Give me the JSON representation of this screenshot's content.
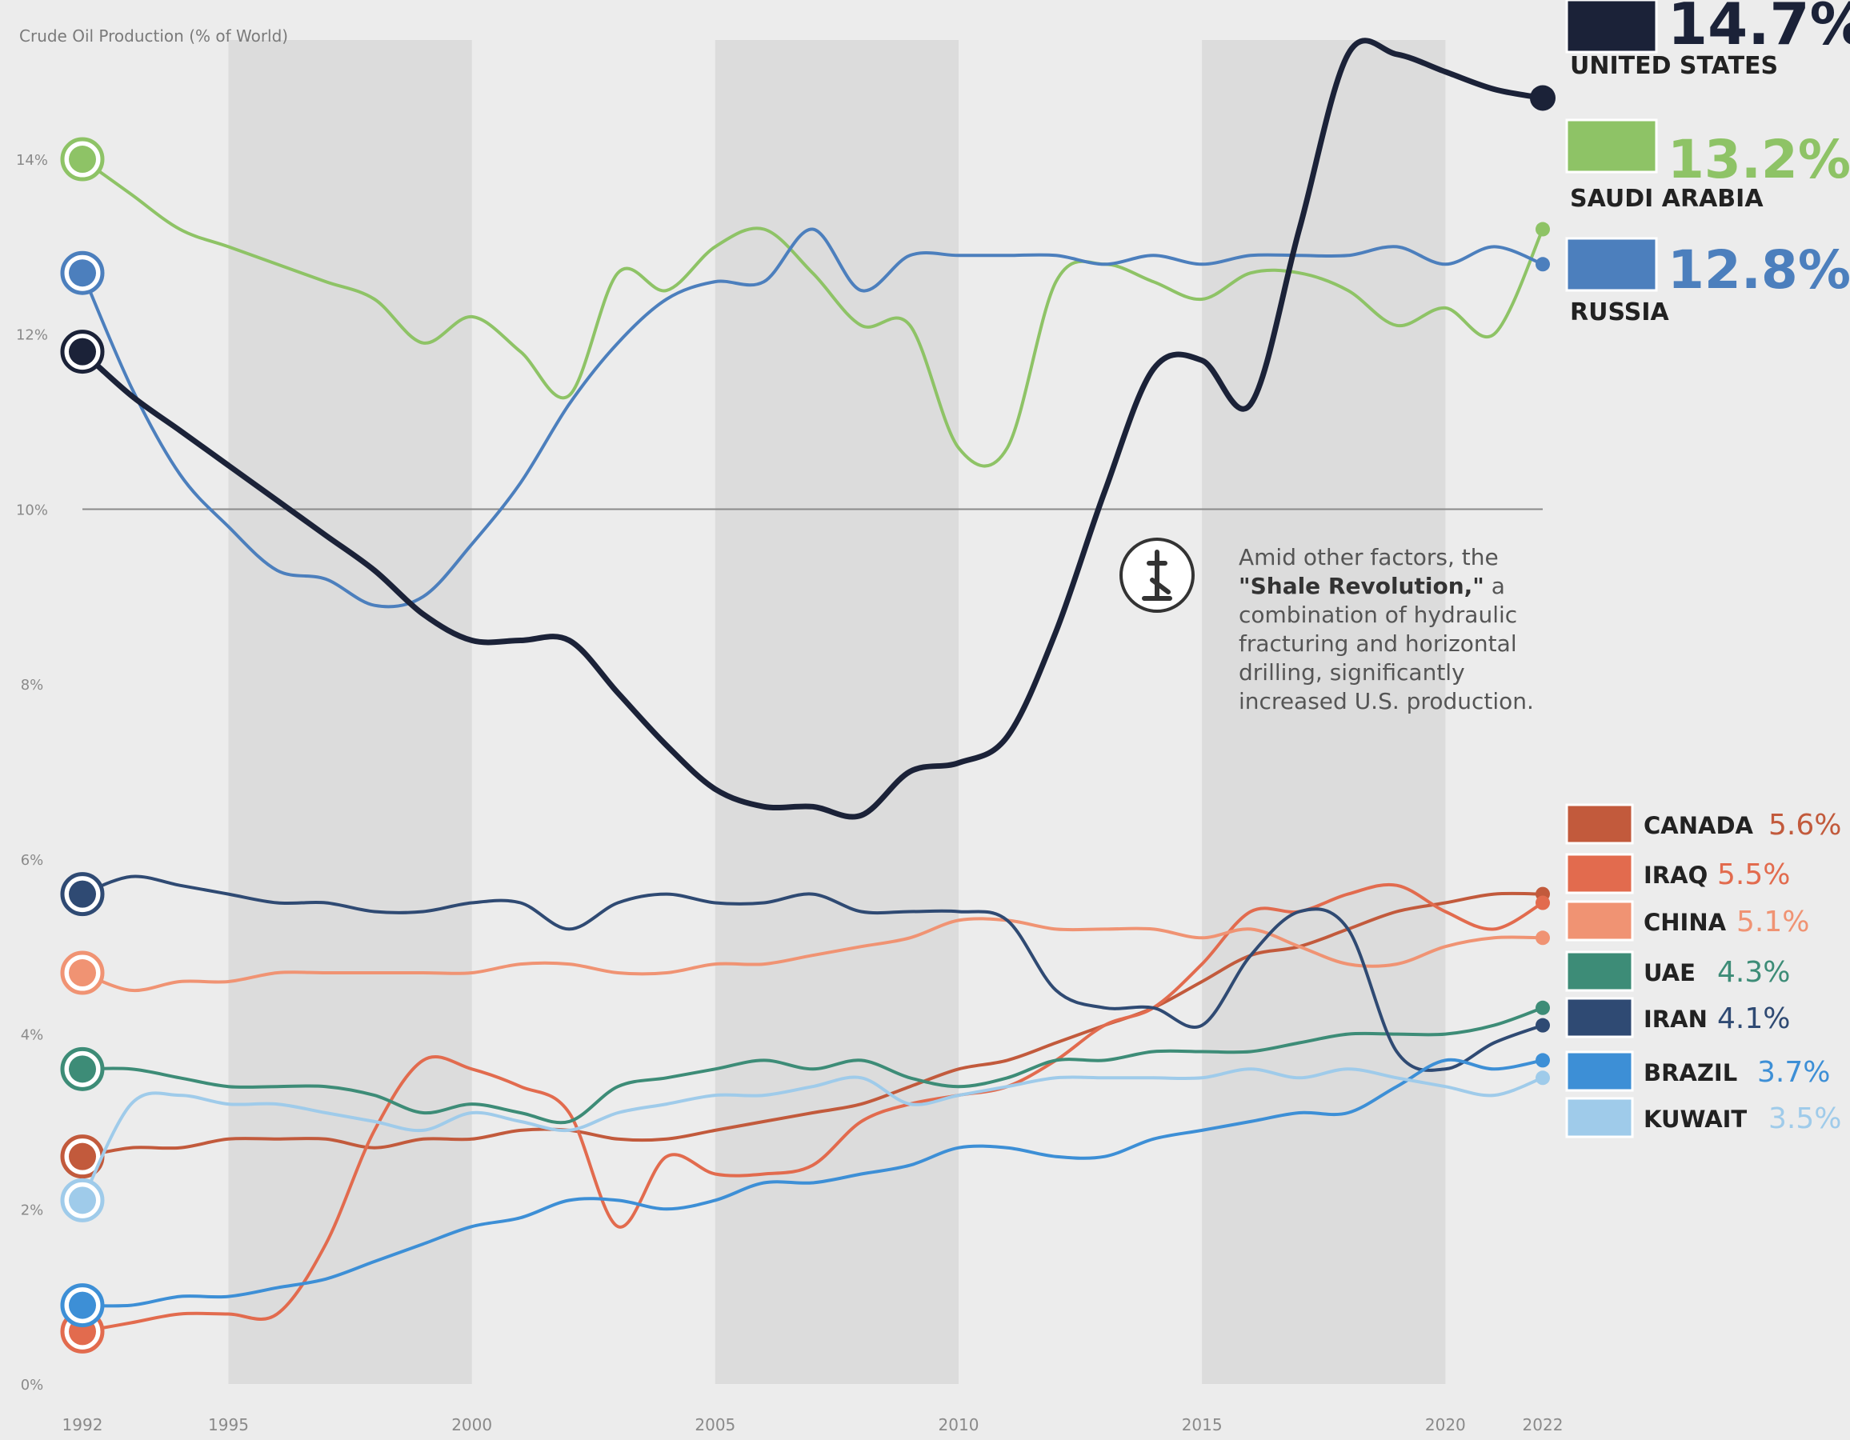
{
  "chart_data": {
    "type": "line",
    "title": "Crude Oil Production (% of World)",
    "xlabel": "",
    "ylabel": "",
    "xlim": [
      1992,
      2022
    ],
    "ylim": [
      0,
      15.5
    ],
    "x_ticks": [
      1992,
      1995,
      2000,
      2005,
      2010,
      2015,
      2020,
      2022
    ],
    "y_ticks": [
      {
        "value": 0,
        "label": "0%"
      },
      {
        "value": 2,
        "label": "2%"
      },
      {
        "value": 4,
        "label": "4%"
      },
      {
        "value": 6,
        "label": "6%"
      },
      {
        "value": 8,
        "label": "8%"
      },
      {
        "value": 10,
        "label": "10%"
      },
      {
        "value": 12,
        "label": "12%"
      },
      {
        "value": 14,
        "label": "14%"
      }
    ],
    "grid": false,
    "highlight_line_value": 10,
    "shaded_bands": [
      [
        1995,
        2000
      ],
      [
        2005,
        2010
      ],
      [
        2015,
        2020
      ]
    ],
    "annotation": {
      "icon": "oil-derrick-icon",
      "line1": "Amid other factors, the",
      "line2_bold": "\"Shale Revolution,\"",
      "line2_rest": " a",
      "line3": "combination of hydraulic",
      "line4": "fracturing and horizontal",
      "line5": "drilling, significantly",
      "line6": "increased U.S. production."
    },
    "series": [
      {
        "name": "UNITED STATES",
        "value_label": "14.7%",
        "color": "#1b2238",
        "emphasis": true,
        "x": [
          1992,
          1993,
          1994,
          1995,
          1996,
          1997,
          1998,
          1999,
          2000,
          2001,
          2002,
          2003,
          2004,
          2005,
          2006,
          2007,
          2008,
          2009,
          2010,
          2011,
          2012,
          2013,
          2014,
          2015,
          2016,
          2017,
          2018,
          2019,
          2020,
          2021,
          2022
        ],
        "values": [
          11.8,
          11.3,
          10.9,
          10.5,
          10.1,
          9.7,
          9.3,
          8.8,
          8.5,
          8.5,
          8.5,
          7.9,
          7.3,
          6.8,
          6.6,
          6.6,
          6.5,
          7.0,
          7.1,
          7.4,
          8.6,
          10.2,
          11.6,
          11.7,
          11.2,
          13.2,
          15.2,
          15.2,
          15.0,
          14.8,
          14.7
        ]
      },
      {
        "name": "SAUDI ARABIA",
        "value_label": "13.2%",
        "color": "#8ec366",
        "x": [
          1992,
          1993,
          1994,
          1995,
          1996,
          1997,
          1998,
          1999,
          2000,
          2001,
          2002,
          2003,
          2004,
          2005,
          2006,
          2007,
          2008,
          2009,
          2010,
          2011,
          2012,
          2013,
          2014,
          2015,
          2016,
          2017,
          2018,
          2019,
          2020,
          2021,
          2022
        ],
        "values": [
          14.0,
          13.6,
          13.2,
          13.0,
          12.8,
          12.6,
          12.4,
          11.9,
          12.2,
          11.8,
          11.3,
          12.7,
          12.5,
          13.0,
          13.2,
          12.7,
          12.1,
          12.1,
          10.7,
          10.7,
          12.6,
          12.8,
          12.6,
          12.4,
          12.7,
          12.7,
          12.5,
          12.1,
          12.3,
          12.0,
          13.2
        ]
      },
      {
        "name": "RUSSIA",
        "value_label": "12.8%",
        "color": "#4c7fbd",
        "x": [
          1992,
          1993,
          1994,
          1995,
          1996,
          1997,
          1998,
          1999,
          2000,
          2001,
          2002,
          2003,
          2004,
          2005,
          2006,
          2007,
          2008,
          2009,
          2010,
          2011,
          2012,
          2013,
          2014,
          2015,
          2016,
          2017,
          2018,
          2019,
          2020,
          2021,
          2022
        ],
        "values": [
          12.7,
          11.4,
          10.4,
          9.8,
          9.3,
          9.2,
          8.9,
          9.0,
          9.6,
          10.3,
          11.2,
          11.9,
          12.4,
          12.6,
          12.6,
          13.2,
          12.5,
          12.9,
          12.9,
          12.9,
          12.9,
          12.8,
          12.9,
          12.8,
          12.9,
          12.9,
          12.9,
          13.0,
          12.8,
          13.0,
          12.8
        ]
      },
      {
        "name": "CANADA",
        "value_label": "5.6%",
        "color": "#c25a3c",
        "x": [
          1992,
          1993,
          1994,
          1995,
          1996,
          1997,
          1998,
          1999,
          2000,
          2001,
          2002,
          2003,
          2004,
          2005,
          2006,
          2007,
          2008,
          2009,
          2010,
          2011,
          2012,
          2013,
          2014,
          2015,
          2016,
          2017,
          2018,
          2019,
          2020,
          2021,
          2022
        ],
        "values": [
          2.6,
          2.7,
          2.7,
          2.8,
          2.8,
          2.8,
          2.7,
          2.8,
          2.8,
          2.9,
          2.9,
          2.8,
          2.8,
          2.9,
          3.0,
          3.1,
          3.2,
          3.4,
          3.6,
          3.7,
          3.9,
          4.1,
          4.3,
          4.6,
          4.9,
          5.0,
          5.2,
          5.4,
          5.5,
          5.6,
          5.6
        ]
      },
      {
        "name": "IRAQ",
        "value_label": "5.5%",
        "color": "#e26b4e",
        "x": [
          1992,
          1993,
          1994,
          1995,
          1996,
          1997,
          1998,
          1999,
          2000,
          2001,
          2002,
          2003,
          2004,
          2005,
          2006,
          2007,
          2008,
          2009,
          2010,
          2011,
          2012,
          2013,
          2014,
          2015,
          2016,
          2017,
          2018,
          2019,
          2020,
          2021,
          2022
        ],
        "values": [
          0.6,
          0.7,
          0.8,
          0.8,
          0.8,
          1.6,
          2.9,
          3.7,
          3.6,
          3.4,
          3.1,
          1.8,
          2.6,
          2.4,
          2.4,
          2.5,
          3.0,
          3.2,
          3.3,
          3.4,
          3.7,
          4.1,
          4.3,
          4.8,
          5.4,
          5.4,
          5.6,
          5.7,
          5.4,
          5.2,
          5.5
        ]
      },
      {
        "name": "CHINA",
        "value_label": "5.1%",
        "color": "#f09373",
        "x": [
          1992,
          1993,
          1994,
          1995,
          1996,
          1997,
          1998,
          1999,
          2000,
          2001,
          2002,
          2003,
          2004,
          2005,
          2006,
          2007,
          2008,
          2009,
          2010,
          2011,
          2012,
          2013,
          2014,
          2015,
          2016,
          2017,
          2018,
          2019,
          2020,
          2021,
          2022
        ],
        "values": [
          4.7,
          4.5,
          4.6,
          4.6,
          4.7,
          4.7,
          4.7,
          4.7,
          4.7,
          4.8,
          4.8,
          4.7,
          4.7,
          4.8,
          4.8,
          4.9,
          5.0,
          5.1,
          5.3,
          5.3,
          5.2,
          5.2,
          5.2,
          5.1,
          5.2,
          5.0,
          4.8,
          4.8,
          5.0,
          5.1,
          5.1
        ]
      },
      {
        "name": "UAE",
        "value_label": "4.3%",
        "color": "#3d8c77",
        "x": [
          1992,
          1993,
          1994,
          1995,
          1996,
          1997,
          1998,
          1999,
          2000,
          2001,
          2002,
          2003,
          2004,
          2005,
          2006,
          2007,
          2008,
          2009,
          2010,
          2011,
          2012,
          2013,
          2014,
          2015,
          2016,
          2017,
          2018,
          2019,
          2020,
          2021,
          2022
        ],
        "values": [
          3.6,
          3.6,
          3.5,
          3.4,
          3.4,
          3.4,
          3.3,
          3.1,
          3.2,
          3.1,
          3.0,
          3.4,
          3.5,
          3.6,
          3.7,
          3.6,
          3.7,
          3.5,
          3.4,
          3.5,
          3.7,
          3.7,
          3.8,
          3.8,
          3.8,
          3.9,
          4.0,
          4.0,
          4.0,
          4.1,
          4.3
        ]
      },
      {
        "name": "IRAN",
        "value_label": "4.1%",
        "color": "#2f4a73",
        "x": [
          1992,
          1993,
          1994,
          1995,
          1996,
          1997,
          1998,
          1999,
          2000,
          2001,
          2002,
          2003,
          2004,
          2005,
          2006,
          2007,
          2008,
          2009,
          2010,
          2011,
          2012,
          2013,
          2014,
          2015,
          2016,
          2017,
          2018,
          2019,
          2020,
          2021,
          2022
        ],
        "values": [
          5.6,
          5.8,
          5.7,
          5.6,
          5.5,
          5.5,
          5.4,
          5.4,
          5.5,
          5.5,
          5.2,
          5.5,
          5.6,
          5.5,
          5.5,
          5.6,
          5.4,
          5.4,
          5.4,
          5.3,
          4.5,
          4.3,
          4.3,
          4.1,
          4.9,
          5.4,
          5.2,
          3.8,
          3.6,
          3.9,
          4.1
        ]
      },
      {
        "name": "BRAZIL",
        "value_label": "3.7%",
        "color": "#3d8fd6",
        "x": [
          1992,
          1993,
          1994,
          1995,
          1996,
          1997,
          1998,
          1999,
          2000,
          2001,
          2002,
          2003,
          2004,
          2005,
          2006,
          2007,
          2008,
          2009,
          2010,
          2011,
          2012,
          2013,
          2014,
          2015,
          2016,
          2017,
          2018,
          2019,
          2020,
          2021,
          2022
        ],
        "values": [
          0.9,
          0.9,
          1.0,
          1.0,
          1.1,
          1.2,
          1.4,
          1.6,
          1.8,
          1.9,
          2.1,
          2.1,
          2.0,
          2.1,
          2.3,
          2.3,
          2.4,
          2.5,
          2.7,
          2.7,
          2.6,
          2.6,
          2.8,
          2.9,
          3.0,
          3.1,
          3.1,
          3.4,
          3.7,
          3.6,
          3.7
        ]
      },
      {
        "name": "KUWAIT",
        "value_label": "3.5%",
        "color": "#9fcbea",
        "x": [
          1992,
          1993,
          1994,
          1995,
          1996,
          1997,
          1998,
          1999,
          2000,
          2001,
          2002,
          2003,
          2004,
          2005,
          2006,
          2007,
          2008,
          2009,
          2010,
          2011,
          2012,
          2013,
          2014,
          2015,
          2016,
          2017,
          2018,
          2019,
          2020,
          2021,
          2022
        ],
        "values": [
          2.1,
          3.2,
          3.3,
          3.2,
          3.2,
          3.1,
          3.0,
          2.9,
          3.1,
          3.0,
          2.9,
          3.1,
          3.2,
          3.3,
          3.3,
          3.4,
          3.5,
          3.2,
          3.3,
          3.4,
          3.5,
          3.5,
          3.5,
          3.5,
          3.6,
          3.5,
          3.6,
          3.5,
          3.4,
          3.3,
          3.5
        ]
      }
    ]
  }
}
